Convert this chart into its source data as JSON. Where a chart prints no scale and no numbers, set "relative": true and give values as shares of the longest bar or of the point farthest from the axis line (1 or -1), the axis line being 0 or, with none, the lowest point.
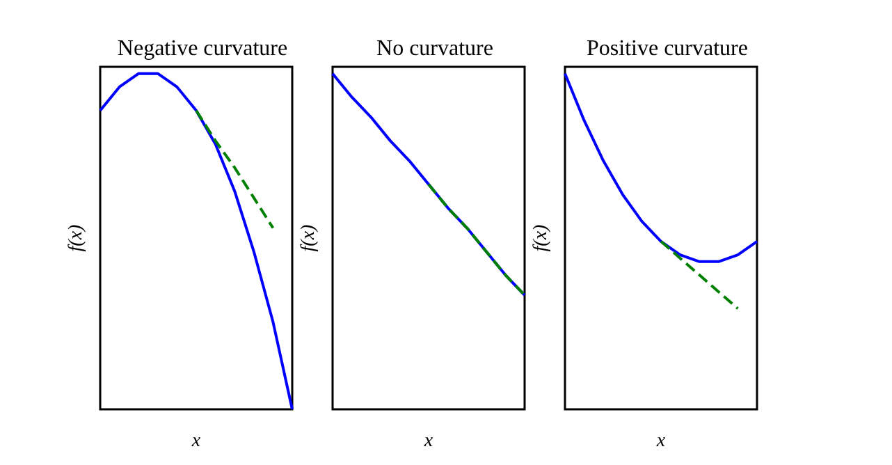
{
  "chart_data": [
    {
      "type": "line",
      "title": "Negative curvature",
      "xlabel": "x",
      "ylabel": "f(x)",
      "relative": true,
      "categories": [
        null,
        null,
        null,
        null,
        null,
        null,
        null,
        null,
        null,
        null,
        null
      ],
      "series": [
        {
          "color": "#0000ff",
          "line_style": "solid",
          "values": [
            0.89,
            0.96,
            1.0,
            1.0,
            0.96,
            0.89,
            0.79,
            0.65,
            0.47,
            0.26,
            0
          ]
        },
        {
          "color": "#008000",
          "line_style": "dashed",
          "values": [
            null,
            null,
            null,
            null,
            null,
            0.89,
            0.8,
            0.72,
            0.63,
            0.54,
            null
          ]
        }
      ],
      "grid": false,
      "marker": "none"
    },
    {
      "type": "line",
      "title": "No curvature",
      "xlabel": "x",
      "ylabel": "f(x)",
      "relative": true,
      "categories": [
        null,
        null,
        null,
        null,
        null,
        null,
        null,
        null,
        null,
        null,
        null
      ],
      "series": [
        {
          "color": "#0000ff",
          "line_style": "solid",
          "values": [
            1.0,
            0.93,
            0.87,
            0.8,
            0.74,
            0.67,
            0.6,
            0.54,
            0.47,
            0.4,
            0.34
          ]
        },
        {
          "color": "#008000",
          "line_style": "dashed",
          "values": [
            null,
            null,
            null,
            null,
            null,
            0.67,
            0.6,
            0.54,
            0.47,
            0.4,
            0.34
          ]
        }
      ],
      "grid": false,
      "marker": "none"
    },
    {
      "type": "line",
      "title": "Positive curvature",
      "xlabel": "x",
      "ylabel": "f(x)",
      "relative": true,
      "categories": [
        null,
        null,
        null,
        null,
        null,
        null,
        null,
        null,
        null,
        null,
        null
      ],
      "series": [
        {
          "color": "#0000ff",
          "line_style": "solid",
          "values": [
            1.0,
            0.86,
            0.74,
            0.64,
            0.56,
            0.5,
            0.46,
            0.44,
            0.44,
            0.46,
            0.5
          ]
        },
        {
          "color": "#008000",
          "line_style": "dashed",
          "values": [
            null,
            null,
            null,
            null,
            null,
            0.5,
            0.45,
            0.4,
            0.35,
            0.3,
            null
          ]
        }
      ],
      "grid": false,
      "marker": "none"
    }
  ]
}
